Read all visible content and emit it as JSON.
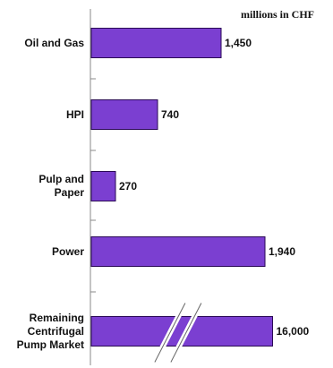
{
  "chart_data": {
    "type": "bar",
    "orientation": "horizontal",
    "unit_label": "millions in CHF",
    "categories": [
      "Oil and Gas",
      "HPI",
      "Pulp and Paper",
      "Power",
      "Remaining Centrifugal Pump Market"
    ],
    "category_lines": [
      [
        "Oil and Gas"
      ],
      [
        "HPI"
      ],
      [
        "Pulp and",
        "Paper"
      ],
      [
        "Power"
      ],
      [
        "Remaining",
        "Centrifugal",
        "Pump Market"
      ]
    ],
    "values": [
      1450,
      740,
      270,
      1940,
      16000
    ],
    "value_labels": [
      "1,450",
      "740",
      "270",
      "1,940",
      "16,000"
    ],
    "axis_break": {
      "category": "Remaining Centrifugal Pump Market",
      "shown_length_as": 2025
    },
    "xlim": [
      0,
      2700
    ],
    "grid": false,
    "bar_color": "#7b3fd1",
    "bar_edge": "#2a0a55"
  }
}
